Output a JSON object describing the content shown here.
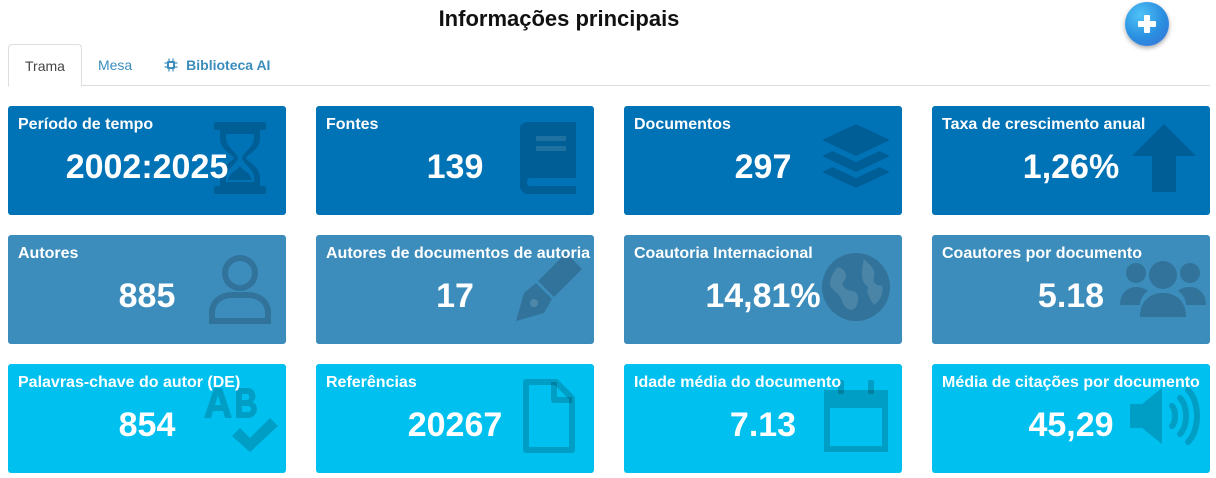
{
  "header": {
    "title": "Informações principais"
  },
  "tabs": [
    {
      "label": "Trama"
    },
    {
      "label": "Mesa"
    },
    {
      "label": "Biblioteca AI"
    }
  ],
  "boxes": [
    {
      "label": "Período de tempo",
      "value": "2002:2025",
      "icon": "hourglass-icon"
    },
    {
      "label": "Fontes",
      "value": "139",
      "icon": "book-icon"
    },
    {
      "label": "Documentos",
      "value": "297",
      "icon": "layers-icon"
    },
    {
      "label": "Taxa de crescimento anual",
      "value": "1,26%",
      "icon": "arrow-up-icon"
    },
    {
      "label": "Autores",
      "value": "885",
      "icon": "user-icon"
    },
    {
      "label": "Autores de documentos de autoria",
      "value": "17",
      "icon": "pen-nib-icon"
    },
    {
      "label": "Coautoria Internacional",
      "value": "14,81%",
      "icon": "globe-icon"
    },
    {
      "label": "Coautores por documento",
      "value": "5.18",
      "icon": "users-icon"
    },
    {
      "label": "Palavras-chave do autor (DE)",
      "value": "854",
      "icon": "spell-check-icon"
    },
    {
      "label": "Referências",
      "value": "20267",
      "icon": "file-icon"
    },
    {
      "label": "Idade média do documento",
      "value": "7.13",
      "icon": "calendar-icon"
    },
    {
      "label": "Média de citações por documento",
      "value": "45,29",
      "icon": "volume-icon"
    }
  ],
  "colors": {
    "row1": "#0073b7",
    "row2": "#3c8dbc",
    "row3": "#00c0ef",
    "tab_link": "#3c8dbc"
  }
}
